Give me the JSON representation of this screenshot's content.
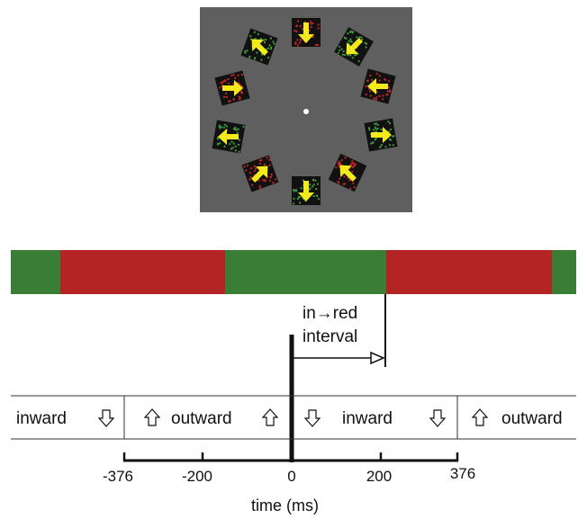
{
  "stimulus": {
    "background": "#5f5f5f",
    "patches": [
      {
        "id": "top",
        "color": "red",
        "arrow": "down"
      },
      {
        "id": "upper-right",
        "color": "green",
        "arrow": "down-left"
      },
      {
        "id": "right-upper",
        "color": "red",
        "arrow": "left"
      },
      {
        "id": "right-lower",
        "color": "green",
        "arrow": "right"
      },
      {
        "id": "lower-right",
        "color": "red",
        "arrow": "up-left"
      },
      {
        "id": "bottom",
        "color": "green",
        "arrow": "down"
      },
      {
        "id": "lower-left",
        "color": "red",
        "arrow": "up-right"
      },
      {
        "id": "left-lower",
        "color": "green",
        "arrow": "left"
      },
      {
        "id": "left-upper",
        "color": "red",
        "arrow": "right"
      },
      {
        "id": "upper-left",
        "color": "green",
        "arrow": "up-left"
      }
    ],
    "fixation": "fixation-dot"
  },
  "colorbar": {
    "green": "#3a7d35",
    "red": "#b52424",
    "segments": [
      "green",
      "red",
      "green",
      "red",
      "green"
    ]
  },
  "annotation": {
    "line1": "in→red",
    "line2": "interval"
  },
  "phases": [
    {
      "label": "inward",
      "icon": "down-arrow-outline-icon"
    },
    {
      "label": "outward",
      "icon": "up-arrow-outline-icon"
    },
    {
      "label": "inward",
      "icon": "down-arrow-outline-icon"
    },
    {
      "label": "outward",
      "icon": "up-arrow-outline-icon"
    }
  ],
  "axis": {
    "ticks": [
      "-376",
      "-200",
      "0",
      "200",
      "376"
    ],
    "label": "time (ms)"
  }
}
